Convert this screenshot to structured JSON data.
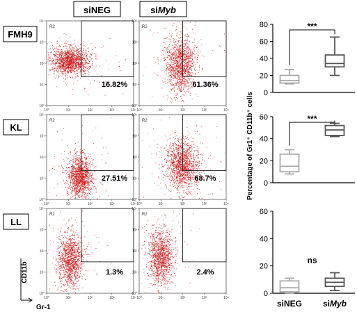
{
  "columns": [
    {
      "prefix": "si",
      "name": "NEG",
      "italic": false
    },
    {
      "prefix": "si",
      "name": "Myb",
      "italic": true
    }
  ],
  "rows": [
    {
      "label": "FMH9",
      "gates": [
        "16.82%",
        "61.36%"
      ]
    },
    {
      "label": "KL",
      "gates": [
        "27.51%",
        "68.7%"
      ]
    },
    {
      "label": "LL",
      "gates": [
        "1.3%",
        "2.4%"
      ]
    }
  ],
  "gate_label": "R2",
  "flow_axis": {
    "ticks_y": [
      "10⁴",
      "10³",
      "10²",
      "10¹",
      "10⁰"
    ],
    "ticks_x": [
      "10⁰",
      "10¹",
      "10²",
      "10³",
      "10⁴"
    ],
    "y_marker": "CD11b",
    "x_marker": "Gr-1"
  },
  "dot_color": "#d11a1a",
  "chart_data": {
    "type": "boxplot",
    "ylabel": "Percentage of Gr1⁺ CD11b⁺ cells",
    "categories": [
      {
        "prefix": "si",
        "name": "NEG",
        "italic": false
      },
      {
        "prefix": "si",
        "name": "Myb",
        "italic": true
      }
    ],
    "panels": [
      {
        "row": "FMH9",
        "ylim": [
          0,
          80
        ],
        "yticks": [
          0,
          20,
          40,
          60,
          80
        ],
        "significance": "***",
        "boxes": [
          {
            "min": 10,
            "q1": 11,
            "median": 14,
            "q3": 20,
            "max": 27,
            "color": "#aaaaaa"
          },
          {
            "min": 20,
            "q1": 30,
            "median": 34,
            "q3": 44,
            "max": 65,
            "color": "#555555"
          }
        ]
      },
      {
        "row": "KL",
        "ylim": [
          0,
          60
        ],
        "yticks": [
          0,
          20,
          40,
          60
        ],
        "significance": "***",
        "boxes": [
          {
            "min": 8,
            "q1": 10,
            "median": 15,
            "q3": 26,
            "max": 30,
            "color": "#aaaaaa"
          },
          {
            "min": 42,
            "q1": 43,
            "median": 48,
            "q3": 52,
            "max": 54,
            "color": "#555555"
          }
        ]
      },
      {
        "row": "LL",
        "ylim": [
          0,
          60
        ],
        "yticks": [
          0,
          20,
          40,
          60
        ],
        "significance": "ns",
        "boxes": [
          {
            "min": 0,
            "q1": 1,
            "median": 4,
            "q3": 9,
            "max": 11,
            "color": "#aaaaaa"
          },
          {
            "min": 2,
            "q1": 5,
            "median": 8,
            "q3": 11,
            "max": 15,
            "color": "#555555"
          }
        ]
      }
    ]
  }
}
